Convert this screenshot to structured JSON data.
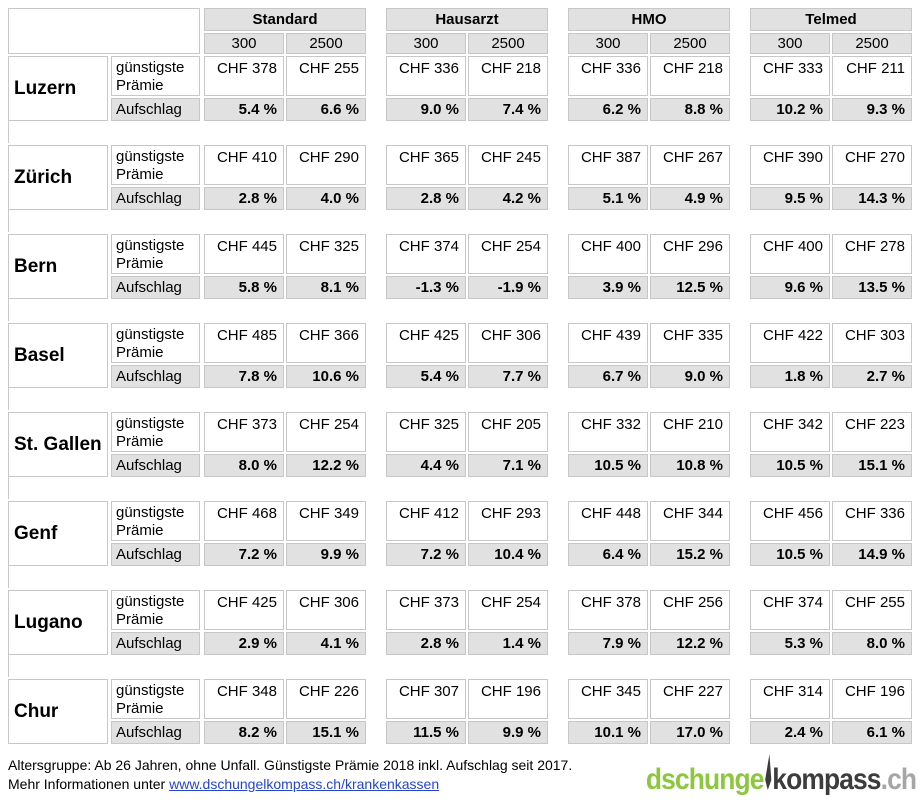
{
  "chart_data": {
    "type": "table",
    "column_groups": [
      "Standard",
      "Hausarzt",
      "HMO",
      "Telmed"
    ],
    "deductibles": [
      "300",
      "2500"
    ],
    "rows_per_city": [
      "günstigste Prämie",
      "Aufschlag"
    ],
    "premium_unit": "CHF",
    "surcharge_unit": "%",
    "cities": [
      {
        "name": "Luzern",
        "premiums_chf": [
          [
            378,
            255
          ],
          [
            336,
            218
          ],
          [
            336,
            218
          ],
          [
            333,
            211
          ]
        ],
        "surcharge_pct": [
          [
            5.4,
            6.6
          ],
          [
            9.0,
            7.4
          ],
          [
            6.2,
            8.8
          ],
          [
            10.2,
            9.3
          ]
        ]
      },
      {
        "name": "Zürich",
        "premiums_chf": [
          [
            410,
            290
          ],
          [
            365,
            245
          ],
          [
            387,
            267
          ],
          [
            390,
            270
          ]
        ],
        "surcharge_pct": [
          [
            2.8,
            4.0
          ],
          [
            2.8,
            4.2
          ],
          [
            5.1,
            4.9
          ],
          [
            9.5,
            14.3
          ]
        ]
      },
      {
        "name": "Bern",
        "premiums_chf": [
          [
            445,
            325
          ],
          [
            374,
            254
          ],
          [
            400,
            296
          ],
          [
            400,
            278
          ]
        ],
        "surcharge_pct": [
          [
            5.8,
            8.1
          ],
          [
            -1.3,
            -1.9
          ],
          [
            3.9,
            12.5
          ],
          [
            9.6,
            13.5
          ]
        ]
      },
      {
        "name": "Basel",
        "premiums_chf": [
          [
            485,
            366
          ],
          [
            425,
            306
          ],
          [
            439,
            335
          ],
          [
            422,
            303
          ]
        ],
        "surcharge_pct": [
          [
            7.8,
            10.6
          ],
          [
            5.4,
            7.7
          ],
          [
            6.7,
            9.0
          ],
          [
            1.8,
            2.7
          ]
        ]
      },
      {
        "name": "St. Gallen",
        "premiums_chf": [
          [
            373,
            254
          ],
          [
            325,
            205
          ],
          [
            332,
            210
          ],
          [
            342,
            223
          ]
        ],
        "surcharge_pct": [
          [
            8.0,
            12.2
          ],
          [
            4.4,
            7.1
          ],
          [
            10.5,
            10.8
          ],
          [
            10.5,
            15.1
          ]
        ]
      },
      {
        "name": "Genf",
        "premiums_chf": [
          [
            468,
            349
          ],
          [
            412,
            293
          ],
          [
            448,
            344
          ],
          [
            456,
            336
          ]
        ],
        "surcharge_pct": [
          [
            7.2,
            9.9
          ],
          [
            7.2,
            10.4
          ],
          [
            6.4,
            15.2
          ],
          [
            10.5,
            14.9
          ]
        ]
      },
      {
        "name": "Lugano",
        "premiums_chf": [
          [
            425,
            306
          ],
          [
            373,
            254
          ],
          [
            378,
            256
          ],
          [
            374,
            255
          ]
        ],
        "surcharge_pct": [
          [
            2.9,
            4.1
          ],
          [
            2.8,
            1.4
          ],
          [
            7.9,
            12.2
          ],
          [
            5.3,
            8.0
          ]
        ]
      },
      {
        "name": "Chur",
        "premiums_chf": [
          [
            348,
            226
          ],
          [
            307,
            196
          ],
          [
            345,
            227
          ],
          [
            314,
            196
          ]
        ],
        "surcharge_pct": [
          [
            8.2,
            15.1
          ],
          [
            11.5,
            9.9
          ],
          [
            10.1,
            17.0
          ],
          [
            2.4,
            6.1
          ]
        ]
      }
    ]
  },
  "footer": {
    "note_line1": "Altersgruppe: Ab 26 Jahren, ohne Unfall. Günstigste Prämie 2018 inkl. Aufschlag seit 2017.",
    "note_line2_prefix": "Mehr Informationen unter ",
    "link_text": "www.dschungelkompass.ch/krankenkassen",
    "link_color": "#2545cc"
  },
  "logo": {
    "part_green": "dschunge",
    "needle_icon": "compass-needle-icon",
    "part_dark": "kompass",
    "part_gray": ".ch",
    "green": "#8dc63f",
    "dark": "#3c3c3c",
    "gray": "#a6a6a6"
  },
  "colors": {
    "cell_border": "#c7c7c7",
    "shaded_background": "#e1e1e1",
    "page_background": "#ffffff"
  }
}
